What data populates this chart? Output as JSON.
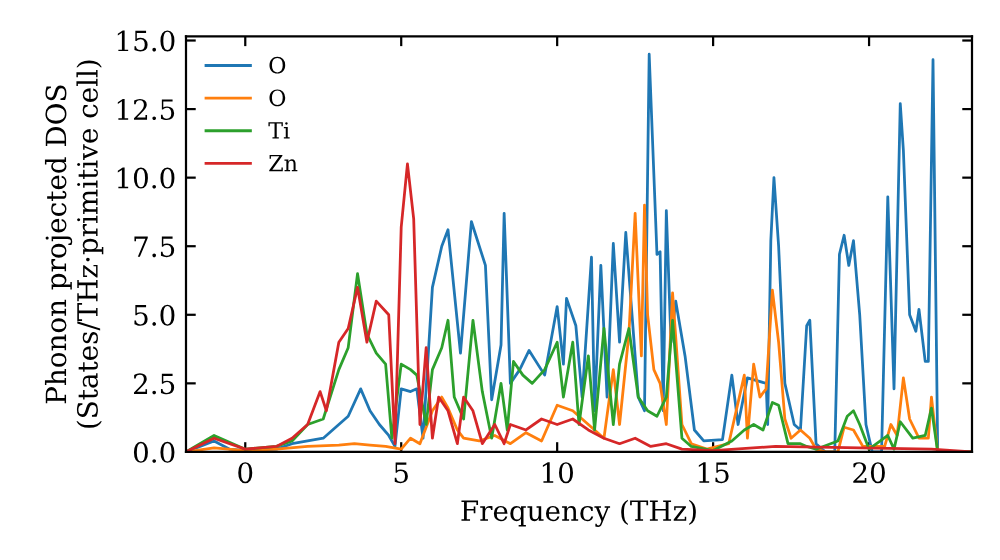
{
  "chart_data": {
    "type": "line",
    "xlabel": "Frequency (THz)",
    "ylabel": "Phonon projected DOS\n(States/THz·primitive cell)",
    "xlim": [
      -1.9,
      23.3
    ],
    "ylim": [
      0,
      15.15
    ],
    "xticks": [
      0,
      5,
      10,
      15,
      20
    ],
    "yticks": [
      {
        "value": 0,
        "label": "0.0"
      },
      {
        "value": 2.5,
        "label": "2.5"
      },
      {
        "value": 5,
        "label": "5.0"
      },
      {
        "value": 7.5,
        "label": "7.5"
      },
      {
        "value": 10,
        "label": "10.0"
      },
      {
        "value": 12.5,
        "label": "12.5"
      },
      {
        "value": 15,
        "label": "15.0"
      }
    ],
    "legend": "top left",
    "grid": false,
    "marker": "none",
    "line_style": "solid",
    "series": [
      {
        "name": "O",
        "color": "#1f77b4",
        "x": [
          -1.9,
          -1,
          -0.5,
          0,
          1,
          1.5,
          2,
          2.5,
          3,
          3.3,
          3.7,
          4,
          4.3,
          4.6,
          4.8,
          5,
          5.3,
          5.5,
          5.7,
          6,
          6.3,
          6.5,
          6.9,
          7.25,
          7.7,
          7.9,
          8.2,
          8.3,
          8.5,
          8.8,
          9.1,
          9.6,
          10,
          10.2,
          10.3,
          10.6,
          10.8,
          11.1,
          11.2,
          11.4,
          11.6,
          11.8,
          12,
          12.2,
          12.6,
          12.8,
          12.95,
          13.2,
          13.3,
          13.4,
          13.5,
          13.65,
          13.8,
          14.1,
          14.4,
          14.7,
          15.3,
          15.6,
          15.8,
          16.1,
          16.7,
          16.75,
          16.85,
          16.95,
          17.1,
          17.3,
          17.6,
          17.8,
          18,
          18.1,
          18.3,
          18.6,
          18.9,
          19.05,
          19.2,
          19.35,
          19.5,
          19.7,
          19.9,
          20.1,
          20.4,
          20.6,
          20.8,
          21,
          21.1,
          21.3,
          21.5,
          21.6,
          21.8,
          21.9,
          22.05,
          22.2,
          23.3
        ],
        "values": [
          0,
          0.4,
          0.1,
          0.05,
          0.1,
          0.3,
          0.4,
          0.5,
          1.0,
          1.3,
          2.3,
          1.5,
          1.0,
          0.6,
          0.2,
          2.3,
          2.2,
          2.3,
          0.5,
          6.0,
          7.5,
          8.1,
          3.6,
          8.4,
          6.8,
          1.9,
          3.9,
          8.7,
          2.5,
          3.0,
          3.7,
          2.8,
          5.3,
          3.2,
          5.6,
          4.6,
          2.0,
          7.1,
          1.5,
          6.8,
          2.0,
          7.6,
          4.0,
          8.0,
          2.0,
          1.5,
          14.5,
          7.2,
          7.3,
          1.5,
          8.8,
          4.0,
          5.5,
          3.5,
          0.8,
          0.4,
          0.45,
          2.8,
          1.0,
          2.7,
          2.5,
          1.0,
          7.7,
          10.0,
          7.5,
          2.5,
          1.0,
          0.8,
          4.6,
          4.8,
          0.3,
          0,
          0,
          7.2,
          7.9,
          6.8,
          7.7,
          5.0,
          1.0,
          0,
          0,
          9.3,
          2.3,
          12.7,
          11.0,
          5.0,
          4.4,
          5.2,
          3.3,
          3.3,
          14.3,
          0,
          0
        ]
      },
      {
        "name": "O",
        "color": "#ff7f0e",
        "x": [
          -1.9,
          -1,
          0,
          1,
          2,
          3,
          3.5,
          4,
          4.5,
          5,
          5.3,
          5.6,
          6,
          6.3,
          6.5,
          6.8,
          7,
          7.5,
          8,
          8.5,
          9,
          9.5,
          10,
          10.5,
          11,
          11.5,
          11.8,
          12,
          12.3,
          12.5,
          12.7,
          12.8,
          12.9,
          13.1,
          13.3,
          13.5,
          13.7,
          14,
          14.3,
          14.8,
          15.5,
          15.6,
          16,
          16.1,
          16.3,
          16.5,
          16.7,
          16.9,
          17.1,
          17.3,
          17.5,
          17.8,
          18.1,
          18.3,
          18.6,
          19,
          19.2,
          19.5,
          19.8,
          20.5,
          20.7,
          20.9,
          21.1,
          21.3,
          21.6,
          21.9,
          22,
          22.2,
          23.3
        ],
        "values": [
          0,
          0.15,
          0.05,
          0.1,
          0.2,
          0.25,
          0.3,
          0.25,
          0.2,
          0.1,
          0.5,
          0.3,
          1.5,
          2.0,
          1.6,
          0.8,
          0.5,
          0.4,
          0.6,
          0.3,
          0.7,
          0.4,
          1.7,
          1.5,
          1.0,
          0.5,
          3.0,
          1.0,
          4.3,
          8.7,
          3.5,
          9.0,
          5.0,
          3.0,
          2.5,
          1.0,
          5.8,
          1.0,
          0.3,
          0.1,
          0.3,
          0.8,
          2.8,
          0.5,
          3.2,
          2.0,
          2.3,
          5.9,
          4.0,
          1.2,
          0.5,
          0.8,
          0.5,
          0.1,
          0,
          0,
          0.9,
          0.8,
          0.2,
          0.2,
          1.0,
          0.6,
          2.7,
          1.2,
          0.5,
          0.5,
          2.0,
          0,
          0
        ]
      },
      {
        "name": "Ti",
        "color": "#2ca02c",
        "x": [
          -1.9,
          -1,
          0,
          1,
          1.5,
          2,
          2.5,
          3,
          3.3,
          3.6,
          3.9,
          4.2,
          4.5,
          4.7,
          5,
          5.3,
          5.5,
          5.8,
          6,
          6.3,
          6.5,
          6.7,
          7,
          7.3,
          7.6,
          7.9,
          8.2,
          8.4,
          8.6,
          8.9,
          9.2,
          9.6,
          10,
          10.2,
          10.5,
          10.7,
          11,
          11.2,
          11.5,
          11.8,
          12,
          12.3,
          12.6,
          12.9,
          13.2,
          13.5,
          13.7,
          14,
          14.3,
          15,
          15.6,
          16,
          16.3,
          16.6,
          16.9,
          17.1,
          17.4,
          17.8,
          18,
          18.3,
          19,
          19.3,
          19.5,
          19.7,
          20,
          20.6,
          20.8,
          21,
          21.4,
          21.8,
          22,
          22.2,
          23.3
        ],
        "values": [
          0,
          0.6,
          0.1,
          0.2,
          0.4,
          1.0,
          1.2,
          3.0,
          3.8,
          6.5,
          4.3,
          3.6,
          3.2,
          0.5,
          3.2,
          3.0,
          2.8,
          1.0,
          3.0,
          3.8,
          4.8,
          2.0,
          1.2,
          4.8,
          2.2,
          0.5,
          2.5,
          0.8,
          3.3,
          2.8,
          2.5,
          3.0,
          4.0,
          2.0,
          4.0,
          1.0,
          3.5,
          0.8,
          4.5,
          1.0,
          3.2,
          4.5,
          2.0,
          1.5,
          1.3,
          2.0,
          4.8,
          0.5,
          0.2,
          0.05,
          0.4,
          0.8,
          1.0,
          0.8,
          1.8,
          1.7,
          0.3,
          0.3,
          0.2,
          0.1,
          0.4,
          1.3,
          1.5,
          1.0,
          0.1,
          0.6,
          0.1,
          1.1,
          0.5,
          0.6,
          1.6,
          0,
          0
        ]
      },
      {
        "name": "Zn",
        "color": "#d62728",
        "x": [
          -1.9,
          -1,
          0,
          1,
          1.5,
          2,
          2.4,
          2.6,
          3,
          3.3,
          3.6,
          3.9,
          4.2,
          4.6,
          4.8,
          5,
          5.2,
          5.4,
          5.6,
          5.8,
          6,
          6.2,
          6.5,
          6.8,
          7,
          7.3,
          7.6,
          8,
          8.3,
          8.5,
          9,
          9.5,
          10,
          10.5,
          11,
          11.5,
          12,
          12.5,
          13,
          13.5,
          14,
          15,
          17,
          22,
          23.3
        ],
        "values": [
          0,
          0.5,
          0.1,
          0.2,
          0.5,
          1.0,
          2.2,
          1.5,
          4.0,
          4.5,
          6.0,
          4.0,
          5.5,
          5.0,
          0.3,
          8.2,
          10.5,
          8.5,
          1.0,
          3.8,
          0.5,
          2.0,
          1.5,
          0.3,
          2.0,
          1.5,
          0.3,
          1.0,
          0.3,
          1.0,
          0.8,
          1.2,
          1.0,
          1.2,
          0.8,
          0.5,
          0.3,
          0.5,
          0.2,
          0.3,
          0.1,
          0.05,
          0.2,
          0.1,
          0
        ]
      }
    ]
  }
}
